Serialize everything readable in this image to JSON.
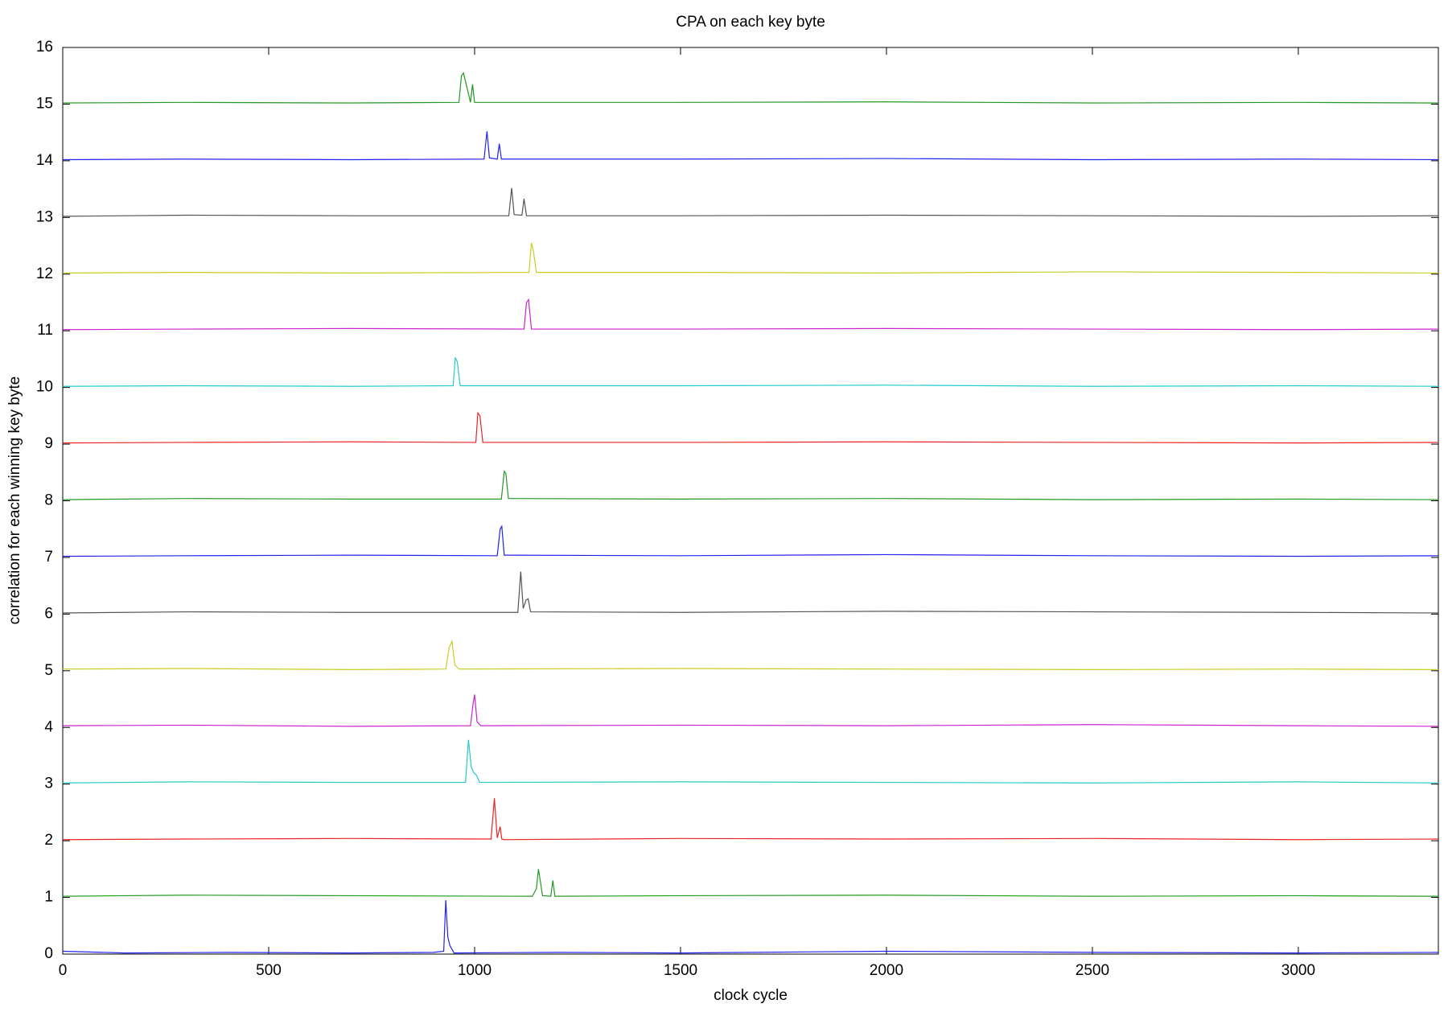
{
  "chart_data": {
    "type": "line",
    "title": "CPA on each key byte",
    "x_label": "clock cycle",
    "y_label": "correlation for each winning key byte",
    "xlim": [
      0,
      3340
    ],
    "xticks": [
      0,
      500,
      1000,
      1500,
      2000,
      2500,
      3000
    ],
    "ylim": [
      0,
      16
    ],
    "yticks": [
      0,
      1,
      2,
      3,
      4,
      5,
      6,
      7,
      8,
      9,
      10,
      11,
      12,
      13,
      14,
      15,
      16
    ],
    "series": [
      {
        "color": "#2222ee",
        "x": [
          0,
          150,
          400,
          700,
          900,
          925,
          930,
          935,
          940,
          950,
          1200,
          1500,
          2000,
          2500,
          3000,
          3340
        ],
        "values": [
          0.05,
          0.02,
          0.03,
          0.02,
          0.03,
          0.05,
          0.95,
          0.3,
          0.15,
          0.02,
          0.03,
          0.02,
          0.05,
          0.03,
          0.02,
          0.03
        ]
      },
      {
        "color": "#229922",
        "x": [
          0,
          300,
          700,
          1140,
          1150,
          1155,
          1165,
          1185,
          1190,
          1195,
          1500,
          2000,
          2500,
          3000,
          3340
        ],
        "values": [
          1.02,
          1.04,
          1.03,
          1.02,
          1.15,
          1.5,
          1.03,
          1.02,
          1.3,
          1.02,
          1.03,
          1.04,
          1.02,
          1.03,
          1.02
        ]
      },
      {
        "color": "#ee2222",
        "x": [
          0,
          300,
          700,
          1040,
          1048,
          1055,
          1062,
          1066,
          1072,
          1500,
          2000,
          2500,
          3000,
          3340
        ],
        "values": [
          2.02,
          2.03,
          2.04,
          2.03,
          2.75,
          2.05,
          2.25,
          2.03,
          2.02,
          2.04,
          2.03,
          2.04,
          2.02,
          2.03
        ]
      },
      {
        "color": "#22cccc",
        "x": [
          0,
          300,
          700,
          978,
          985,
          992,
          998,
          1005,
          1012,
          1500,
          2000,
          2500,
          3000,
          3340
        ],
        "values": [
          3.02,
          3.04,
          3.03,
          3.03,
          3.78,
          3.3,
          3.2,
          3.15,
          3.03,
          3.04,
          3.03,
          3.02,
          3.04,
          3.02
        ]
      },
      {
        "color": "#cc22cc",
        "x": [
          0,
          300,
          700,
          990,
          996,
          1000,
          1006,
          1015,
          1500,
          2000,
          2500,
          3000,
          3340
        ],
        "values": [
          4.03,
          4.04,
          4.02,
          4.03,
          4.4,
          4.58,
          4.1,
          4.03,
          4.04,
          4.03,
          4.05,
          4.03,
          4.02
        ]
      },
      {
        "color": "#cccc22",
        "x": [
          0,
          300,
          700,
          930,
          938,
          945,
          952,
          962,
          1500,
          2000,
          2500,
          3000,
          3340
        ],
        "values": [
          5.03,
          5.04,
          5.02,
          5.03,
          5.4,
          5.52,
          5.1,
          5.03,
          5.04,
          5.03,
          5.02,
          5.03,
          5.02
        ]
      },
      {
        "color": "#555555",
        "x": [
          0,
          300,
          700,
          1105,
          1112,
          1118,
          1125,
          1130,
          1136,
          1500,
          2000,
          2500,
          3000,
          3340
        ],
        "values": [
          6.02,
          6.04,
          6.03,
          6.03,
          6.75,
          6.1,
          6.25,
          6.27,
          6.04,
          6.03,
          6.05,
          6.04,
          6.03,
          6.02
        ]
      },
      {
        "color": "#2222ee",
        "x": [
          0,
          300,
          700,
          1055,
          1062,
          1066,
          1072,
          1500,
          2000,
          2500,
          3000,
          3340
        ],
        "values": [
          7.02,
          7.03,
          7.04,
          7.03,
          7.5,
          7.55,
          7.04,
          7.03,
          7.05,
          7.03,
          7.02,
          7.03
        ]
      },
      {
        "color": "#229922",
        "x": [
          0,
          300,
          700,
          1065,
          1072,
          1076,
          1082,
          1500,
          2000,
          2500,
          3000,
          3340
        ],
        "values": [
          8.02,
          8.04,
          8.03,
          8.03,
          8.52,
          8.48,
          8.04,
          8.03,
          8.04,
          8.02,
          8.03,
          8.02
        ]
      },
      {
        "color": "#ee2222",
        "x": [
          0,
          300,
          700,
          1003,
          1008,
          1013,
          1020,
          1500,
          2000,
          2500,
          3000,
          3340
        ],
        "values": [
          9.02,
          9.03,
          9.04,
          9.03,
          9.55,
          9.5,
          9.03,
          9.03,
          9.04,
          9.03,
          9.02,
          9.03
        ]
      },
      {
        "color": "#22cccc",
        "x": [
          0,
          300,
          700,
          948,
          953,
          958,
          965,
          1500,
          2000,
          2500,
          3000,
          3340
        ],
        "values": [
          10.02,
          10.03,
          10.02,
          10.03,
          10.53,
          10.45,
          10.03,
          10.03,
          10.04,
          10.02,
          10.03,
          10.02
        ]
      },
      {
        "color": "#cc22cc",
        "x": [
          0,
          300,
          700,
          1120,
          1126,
          1131,
          1138,
          1500,
          2000,
          2500,
          3000,
          3340
        ],
        "values": [
          11.02,
          11.03,
          11.04,
          11.03,
          11.5,
          11.55,
          11.03,
          11.03,
          11.04,
          11.03,
          11.02,
          11.03
        ]
      },
      {
        "color": "#cccc22",
        "x": [
          0,
          300,
          700,
          1132,
          1138,
          1143,
          1150,
          1500,
          2000,
          2500,
          3000,
          3340
        ],
        "values": [
          12.02,
          12.03,
          12.02,
          12.03,
          12.55,
          12.4,
          12.03,
          12.03,
          12.02,
          12.04,
          12.03,
          12.02
        ]
      },
      {
        "color": "#555555",
        "x": [
          0,
          300,
          700,
          1083,
          1090,
          1096,
          1115,
          1120,
          1126,
          1500,
          2000,
          2500,
          3000,
          3340
        ],
        "values": [
          13.02,
          13.04,
          13.03,
          13.03,
          13.52,
          13.05,
          13.04,
          13.33,
          13.03,
          13.03,
          13.04,
          13.03,
          13.02,
          13.03
        ]
      },
      {
        "color": "#2222ee",
        "x": [
          0,
          300,
          700,
          1023,
          1030,
          1036,
          1055,
          1060,
          1065,
          1500,
          2000,
          2500,
          3000,
          3340
        ],
        "values": [
          14.02,
          14.03,
          14.02,
          14.03,
          14.52,
          14.05,
          14.03,
          14.3,
          14.03,
          14.03,
          14.04,
          14.02,
          14.03,
          14.02
        ]
      },
      {
        "color": "#229922",
        "x": [
          0,
          300,
          700,
          962,
          968,
          973,
          990,
          995,
          1000,
          1500,
          2000,
          2500,
          3000,
          3340
        ],
        "values": [
          15.02,
          15.03,
          15.02,
          15.03,
          15.5,
          15.55,
          15.03,
          15.35,
          15.03,
          15.03,
          15.04,
          15.02,
          15.03,
          15.02
        ]
      }
    ]
  }
}
